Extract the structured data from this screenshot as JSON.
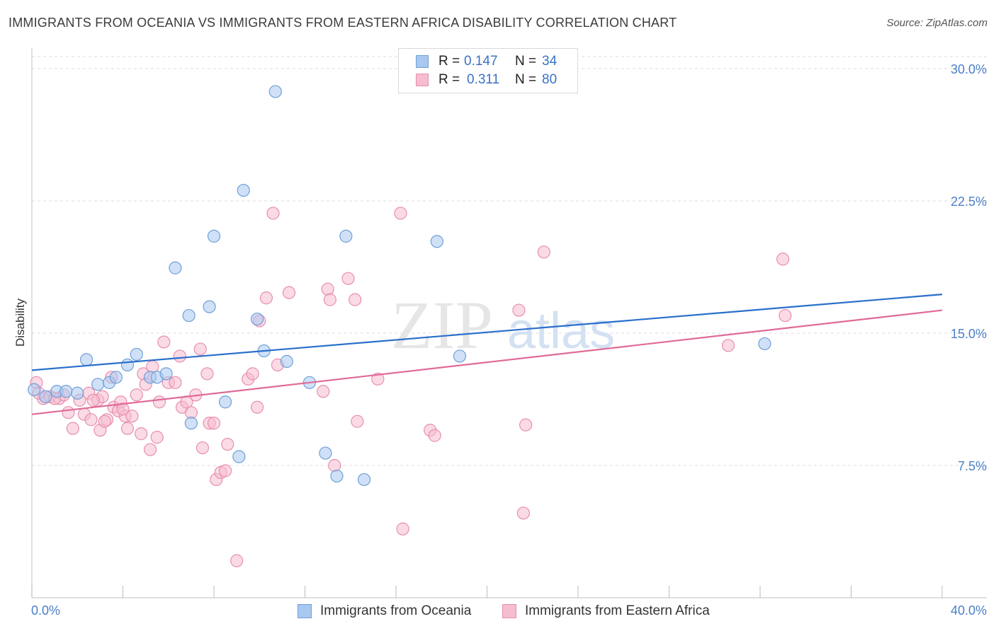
{
  "title": "IMMIGRANTS FROM OCEANIA VS IMMIGRANTS FROM EASTERN AFRICA DISABILITY CORRELATION CHART",
  "source": "Source: ZipAtlas.com",
  "watermark": {
    "zip": "ZIP",
    "atlas": "atlas"
  },
  "legend": {
    "rows": [
      {
        "r_label": "R =",
        "r_value": "0.147",
        "n_label": "N =",
        "n_value": "34"
      },
      {
        "r_label": "R =",
        "r_value": "0.311",
        "n_label": "N =",
        "n_value": "80"
      }
    ]
  },
  "bottom_legend": [
    "Immigrants from Oceania",
    "Immigrants from Eastern Africa"
  ],
  "colors": {
    "oceania_fill": "#a9c8f0",
    "oceania_stroke": "#6f9fd8",
    "oceania_line": "#2a6fcc",
    "eafrica_fill": "#f6bcd0",
    "eafrica_stroke": "#e88fae",
    "eafrica_line": "#e06a98",
    "tick_label": "#4a7fc8",
    "grid": "#dddddd"
  },
  "chart_data": {
    "type": "scatter",
    "ylabel": "Disability",
    "xlim": [
      0,
      40
    ],
    "ylim": [
      0,
      30
    ],
    "x_edge_labels": [
      "0.0%",
      "40.0%"
    ],
    "y_ticks": [
      {
        "value": 7.5,
        "label": "7.5%"
      },
      {
        "value": 15.0,
        "label": "15.0%"
      },
      {
        "value": 22.5,
        "label": "22.5%"
      },
      {
        "value": 30.0,
        "label": "30.0%"
      }
    ],
    "series": [
      {
        "name": "Immigrants from Oceania",
        "points": [
          [
            0.1,
            11.8
          ],
          [
            0.6,
            11.4
          ],
          [
            1.1,
            11.7
          ],
          [
            1.5,
            11.7
          ],
          [
            2.0,
            11.6
          ],
          [
            2.4,
            13.5
          ],
          [
            2.9,
            12.1
          ],
          [
            3.4,
            12.2
          ],
          [
            3.7,
            12.5
          ],
          [
            4.2,
            13.2
          ],
          [
            4.6,
            13.8
          ],
          [
            5.2,
            12.5
          ],
          [
            5.5,
            12.5
          ],
          [
            5.9,
            12.7
          ],
          [
            6.3,
            18.7
          ],
          [
            6.9,
            16.0
          ],
          [
            7.0,
            9.9
          ],
          [
            7.8,
            16.5
          ],
          [
            8.0,
            20.5
          ],
          [
            8.5,
            11.1
          ],
          [
            9.1,
            8.0
          ],
          [
            9.3,
            23.1
          ],
          [
            9.9,
            15.8
          ],
          [
            10.2,
            14.0
          ],
          [
            10.7,
            28.7
          ],
          [
            11.2,
            13.4
          ],
          [
            12.2,
            12.2
          ],
          [
            12.9,
            8.2
          ],
          [
            13.4,
            6.9
          ],
          [
            13.8,
            20.5
          ],
          [
            14.6,
            6.7
          ],
          [
            17.8,
            20.2
          ],
          [
            18.8,
            13.7
          ],
          [
            32.2,
            14.4
          ]
        ]
      },
      {
        "name": "Immigrants from Eastern Africa",
        "points": [
          [
            0.2,
            12.2
          ],
          [
            0.5,
            11.3
          ],
          [
            0.8,
            11.4
          ],
          [
            1.2,
            11.3
          ],
          [
            1.4,
            11.5
          ],
          [
            1.6,
            10.5
          ],
          [
            1.8,
            9.6
          ],
          [
            2.1,
            11.2
          ],
          [
            2.3,
            10.4
          ],
          [
            2.5,
            11.6
          ],
          [
            2.6,
            10.1
          ],
          [
            2.9,
            11.2
          ],
          [
            3.0,
            9.5
          ],
          [
            3.1,
            11.4
          ],
          [
            3.3,
            10.1
          ],
          [
            3.5,
            12.5
          ],
          [
            3.6,
            10.8
          ],
          [
            3.8,
            10.6
          ],
          [
            3.9,
            11.1
          ],
          [
            4.1,
            10.3
          ],
          [
            4.2,
            9.6
          ],
          [
            4.4,
            10.3
          ],
          [
            4.6,
            11.5
          ],
          [
            4.8,
            9.3
          ],
          [
            4.9,
            12.7
          ],
          [
            5.0,
            12.1
          ],
          [
            5.2,
            8.4
          ],
          [
            5.3,
            13.1
          ],
          [
            5.5,
            9.1
          ],
          [
            5.6,
            11.1
          ],
          [
            5.8,
            14.5
          ],
          [
            6.0,
            12.2
          ],
          [
            6.3,
            12.2
          ],
          [
            6.5,
            13.7
          ],
          [
            6.6,
            10.8
          ],
          [
            6.8,
            11.1
          ],
          [
            7.0,
            10.5
          ],
          [
            7.2,
            11.5
          ],
          [
            7.4,
            14.1
          ],
          [
            7.5,
            8.5
          ],
          [
            7.7,
            12.7
          ],
          [
            7.8,
            9.9
          ],
          [
            8.0,
            9.9
          ],
          [
            8.1,
            6.7
          ],
          [
            8.3,
            7.1
          ],
          [
            8.5,
            7.2
          ],
          [
            8.6,
            8.7
          ],
          [
            9.0,
            2.1
          ],
          [
            9.5,
            12.4
          ],
          [
            9.7,
            12.7
          ],
          [
            9.9,
            10.8
          ],
          [
            10.0,
            15.7
          ],
          [
            10.3,
            17.0
          ],
          [
            10.6,
            21.8
          ],
          [
            10.8,
            13.2
          ],
          [
            11.3,
            17.3
          ],
          [
            12.8,
            11.7
          ],
          [
            13.0,
            17.5
          ],
          [
            13.1,
            16.9
          ],
          [
            13.3,
            7.5
          ],
          [
            13.9,
            18.1
          ],
          [
            14.2,
            16.9
          ],
          [
            14.3,
            10.0
          ],
          [
            15.2,
            12.4
          ],
          [
            16.3,
            3.9
          ],
          [
            16.2,
            21.8
          ],
          [
            17.5,
            9.5
          ],
          [
            17.7,
            9.2
          ],
          [
            21.4,
            16.3
          ],
          [
            21.6,
            4.8
          ],
          [
            21.7,
            9.8
          ],
          [
            22.5,
            19.6
          ],
          [
            30.6,
            14.3
          ],
          [
            33.0,
            19.2
          ],
          [
            33.1,
            16.0
          ],
          [
            0.3,
            11.6
          ],
          [
            1.0,
            11.3
          ],
          [
            2.7,
            11.2
          ],
          [
            3.2,
            10.0
          ],
          [
            4.0,
            10.7
          ]
        ]
      }
    ],
    "trend_lines": [
      {
        "series": "Immigrants from Oceania",
        "start": [
          0,
          12.9
        ],
        "end": [
          40,
          17.2
        ]
      },
      {
        "series": "Immigrants from Eastern Africa",
        "start": [
          0,
          10.4
        ],
        "end": [
          40,
          16.3
        ]
      }
    ]
  }
}
